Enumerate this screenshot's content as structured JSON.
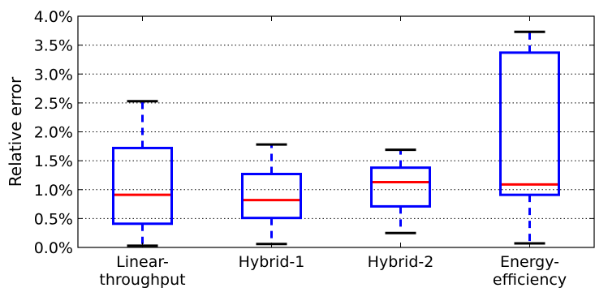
{
  "chart_data": {
    "type": "box",
    "title": "",
    "xlabel": "",
    "ylabel": "Relative error",
    "ylim": [
      0.0,
      4.0
    ],
    "y_unit": "%",
    "yticks": [
      0.0,
      0.5,
      1.0,
      1.5,
      2.0,
      2.5,
      3.0,
      3.5,
      4.0
    ],
    "ytick_labels": [
      "0.0%",
      "0.5%",
      "1.0%",
      "1.5%",
      "2.0%",
      "2.5%",
      "3.0%",
      "3.5%",
      "4.0%"
    ],
    "grid": "horizontal-dotted",
    "categories": [
      [
        "Linear-",
        "throughput"
      ],
      [
        "Hybrid-1"
      ],
      [
        "Hybrid-2"
      ],
      [
        "Energy-",
        "efficiency"
      ]
    ],
    "boxes": [
      {
        "whisker_low": 0.03,
        "q1": 0.41,
        "median": 0.91,
        "q3": 1.72,
        "whisker_high": 2.53
      },
      {
        "whisker_low": 0.06,
        "q1": 0.51,
        "median": 0.82,
        "q3": 1.27,
        "whisker_high": 1.78
      },
      {
        "whisker_low": 0.25,
        "q1": 0.71,
        "median": 1.13,
        "q3": 1.38,
        "whisker_high": 1.69
      },
      {
        "whisker_low": 0.07,
        "q1": 0.91,
        "median": 1.09,
        "q3": 3.37,
        "whisker_high": 3.73
      }
    ],
    "colors": {
      "box": "#0000ff",
      "median": "#ff0000",
      "cap": "#000000",
      "whisker": "#0000ff"
    }
  }
}
